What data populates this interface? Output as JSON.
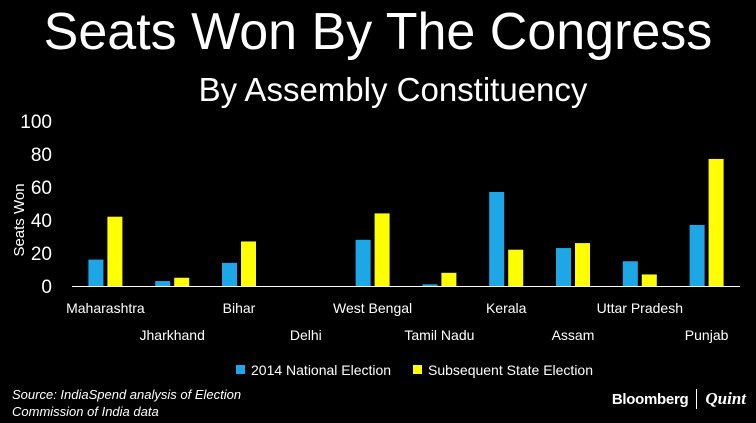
{
  "chart_data": {
    "type": "bar",
    "title": "Seats Won By The Congress",
    "subtitle": "By Assembly Constituency",
    "ylabel": "Seats Won",
    "xlabel": "",
    "ylim": [
      0,
      100
    ],
    "yticks": [
      0,
      20,
      40,
      60,
      80,
      100
    ],
    "grid": false,
    "legend_position": "bottom-center",
    "categories": [
      "Maharashtra",
      "Jharkhand",
      "Bihar",
      "Delhi",
      "West Bengal",
      "Tamil Nadu",
      "Kerala",
      "Assam",
      "Uttar Pradesh",
      "Punjab"
    ],
    "series": [
      {
        "name": "2014 National Election",
        "color": "#1ea7e6",
        "values": [
          16,
          3,
          14,
          0,
          28,
          1,
          57,
          23,
          15,
          37
        ]
      },
      {
        "name": "Subsequent State Election",
        "color": "#ffff00",
        "values": [
          42,
          5,
          27,
          0,
          44,
          8,
          22,
          26,
          7,
          77
        ]
      }
    ]
  },
  "source_line1": "Source: IndiaSpend analysis of Election",
  "source_line2": "Commission of India data",
  "logo": {
    "primary": "Bloomberg",
    "secondary": "Quint"
  }
}
